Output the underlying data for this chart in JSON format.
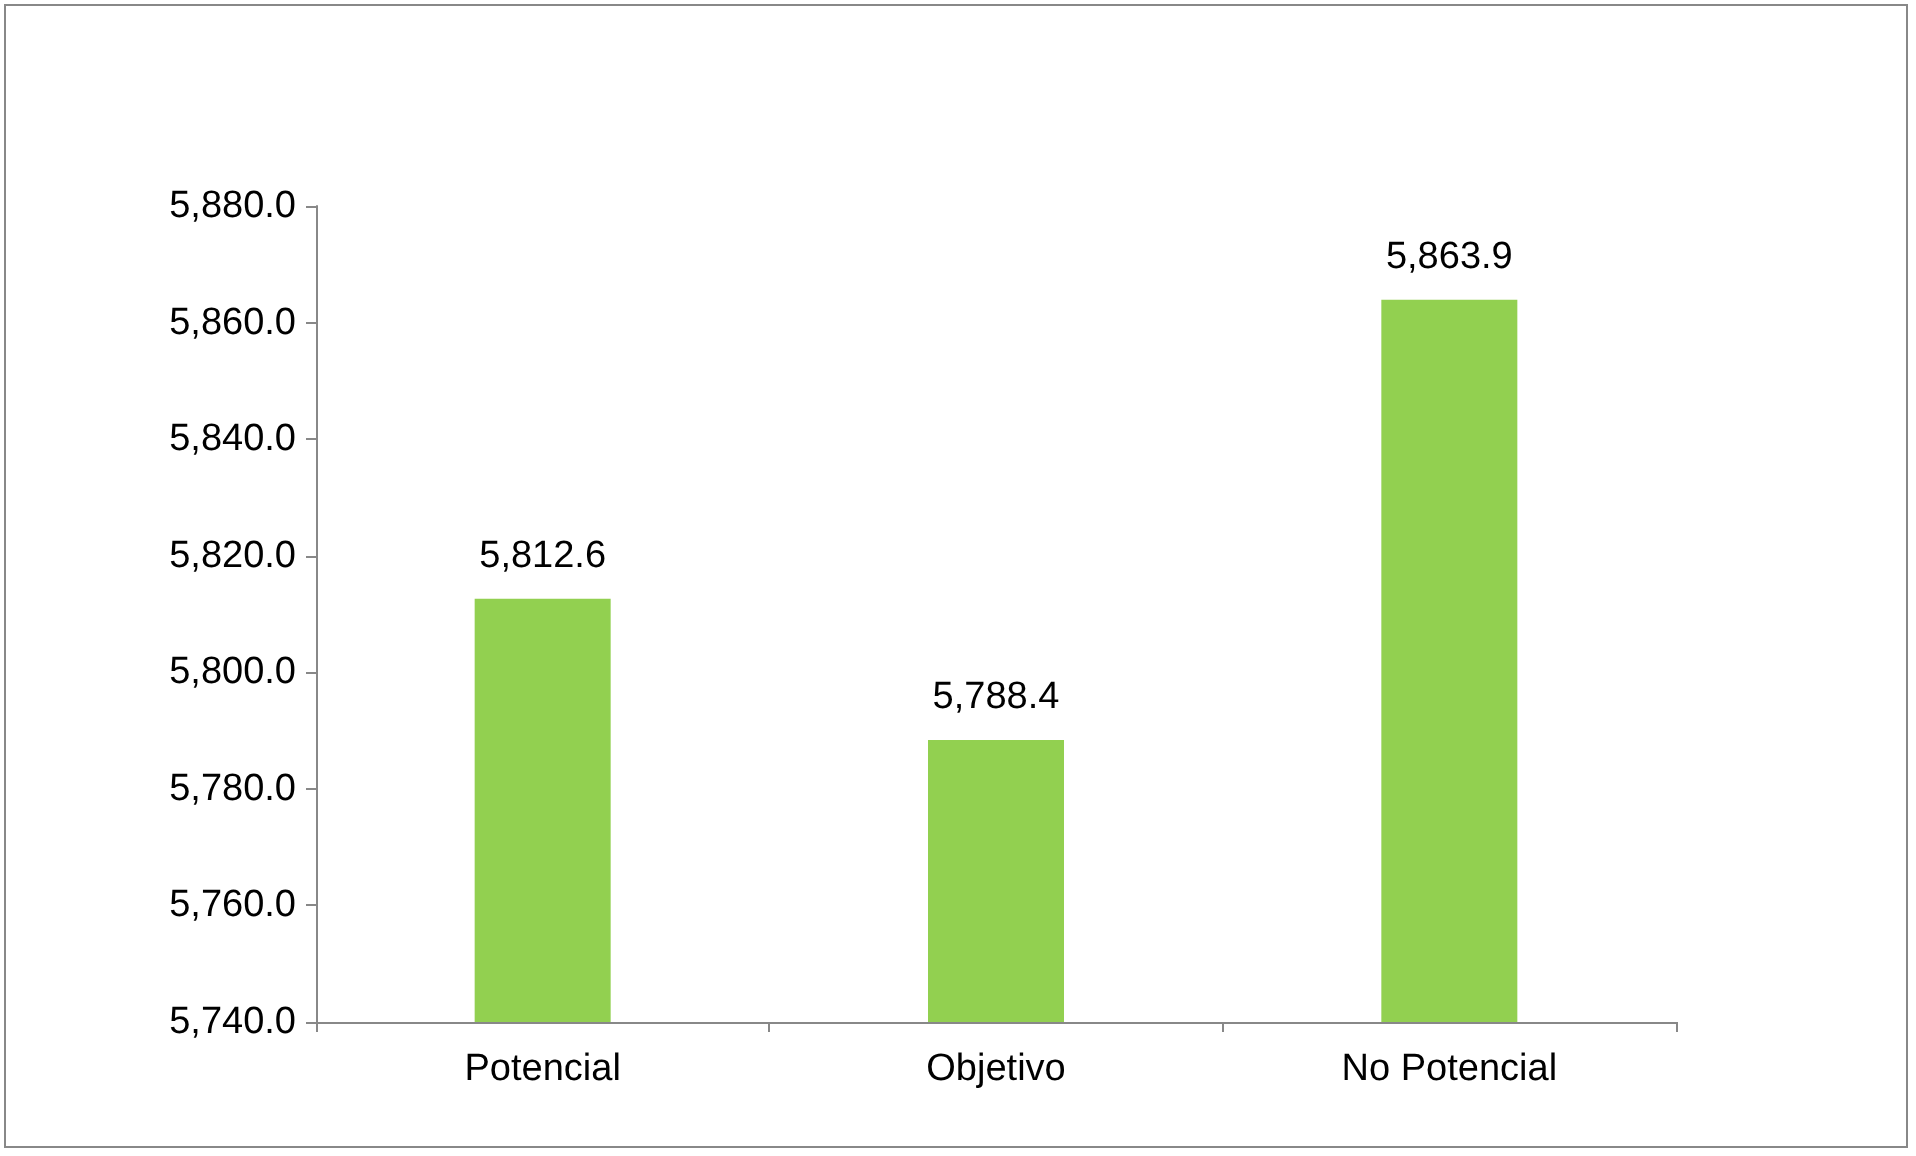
{
  "chart_data": {
    "type": "bar",
    "categories": [
      "Potencial",
      "Objetivo",
      "No Potencial"
    ],
    "values": [
      5812.6,
      5788.4,
      5863.9
    ],
    "value_labels": [
      "5,812.6",
      "5,788.4",
      "5,863.9"
    ],
    "color": "#92d050",
    "ylim": [
      5740,
      5880
    ],
    "yticks": [
      {
        "value": 5740,
        "label": "5,740.0"
      },
      {
        "value": 5760,
        "label": "5,760.0"
      },
      {
        "value": 5780,
        "label": "5,780.0"
      },
      {
        "value": 5800,
        "label": "5,800.0"
      },
      {
        "value": 5820,
        "label": "5,820.0"
      },
      {
        "value": 5840,
        "label": "5,840.0"
      },
      {
        "value": 5860,
        "label": "5,860.0"
      },
      {
        "value": 5880,
        "label": "5,880.0"
      }
    ]
  }
}
